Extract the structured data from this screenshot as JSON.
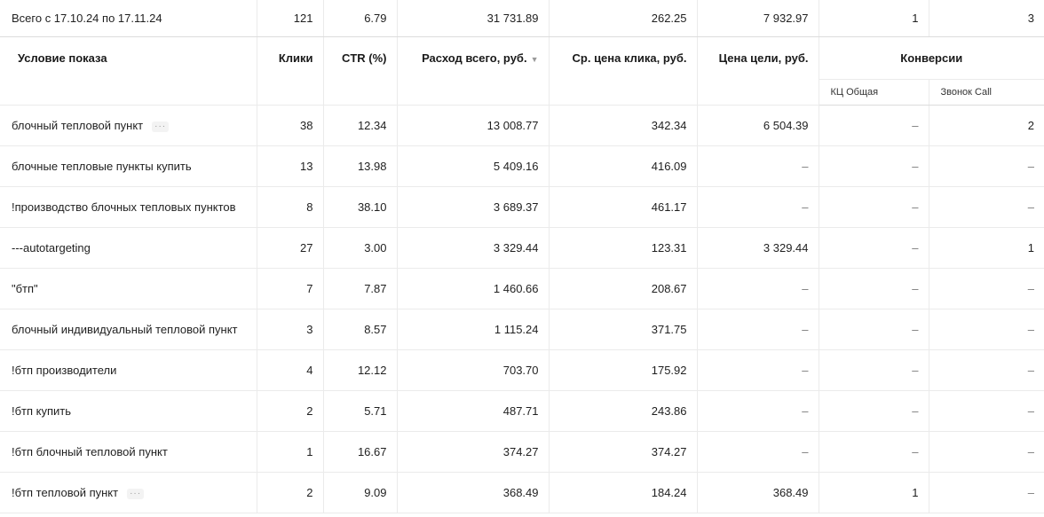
{
  "total": {
    "label": "Всего с 17.10.24 по 17.11.24",
    "clicks": "121",
    "ctr": "6.79",
    "spend": "31 731.89",
    "avg_cpc": "262.25",
    "goal_cost": "7 932.97",
    "conv1": "1",
    "conv2": "3"
  },
  "headers": {
    "condition": "Условие показа",
    "clicks": "Клики",
    "ctr": "CTR (%)",
    "spend": "Расход всего, руб.",
    "avg_cpc": "Ср. цена клика, руб.",
    "goal_cost": "Цена цели, руб.",
    "conversions": "Конверсии",
    "conv1": "КЦ Общая",
    "conv2": "Звонок Call",
    "sort_icon": "▼",
    "more_icon": "···"
  },
  "rows": [
    {
      "label": "блочный тепловой пункт",
      "clicks": "38",
      "ctr": "12.34",
      "spend": "13 008.77",
      "avg_cpc": "342.34",
      "goal_cost": "6 504.39",
      "conv1": "–",
      "conv2": "2",
      "more": true
    },
    {
      "label": "блочные тепловые пункты купить",
      "clicks": "13",
      "ctr": "13.98",
      "spend": "5 409.16",
      "avg_cpc": "416.09",
      "goal_cost": "–",
      "conv1": "–",
      "conv2": "–"
    },
    {
      "label": "!производство блочных тепловых пунктов",
      "clicks": "8",
      "ctr": "38.10",
      "spend": "3 689.37",
      "avg_cpc": "461.17",
      "goal_cost": "–",
      "conv1": "–",
      "conv2": "–"
    },
    {
      "label": "---autotargeting",
      "clicks": "27",
      "ctr": "3.00",
      "spend": "3 329.44",
      "avg_cpc": "123.31",
      "goal_cost": "3 329.44",
      "conv1": "–",
      "conv2": "1"
    },
    {
      "label": "\"бтп\"",
      "clicks": "7",
      "ctr": "7.87",
      "spend": "1 460.66",
      "avg_cpc": "208.67",
      "goal_cost": "–",
      "conv1": "–",
      "conv2": "–"
    },
    {
      "label": "блочный индивидуальный тепловой пункт",
      "clicks": "3",
      "ctr": "8.57",
      "spend": "1 115.24",
      "avg_cpc": "371.75",
      "goal_cost": "–",
      "conv1": "–",
      "conv2": "–"
    },
    {
      "label": "!бтп производители",
      "clicks": "4",
      "ctr": "12.12",
      "spend": "703.70",
      "avg_cpc": "175.92",
      "goal_cost": "–",
      "conv1": "–",
      "conv2": "–"
    },
    {
      "label": "!бтп купить",
      "clicks": "2",
      "ctr": "5.71",
      "spend": "487.71",
      "avg_cpc": "243.86",
      "goal_cost": "–",
      "conv1": "–",
      "conv2": "–"
    },
    {
      "label": "!бтп блочный тепловой пункт",
      "clicks": "1",
      "ctr": "16.67",
      "spend": "374.27",
      "avg_cpc": "374.27",
      "goal_cost": "–",
      "conv1": "–",
      "conv2": "–"
    },
    {
      "label": "!бтп тепловой пункт",
      "clicks": "2",
      "ctr": "9.09",
      "spend": "368.49",
      "avg_cpc": "184.24",
      "goal_cost": "368.49",
      "conv1": "1",
      "conv2": "–",
      "more": true
    }
  ]
}
